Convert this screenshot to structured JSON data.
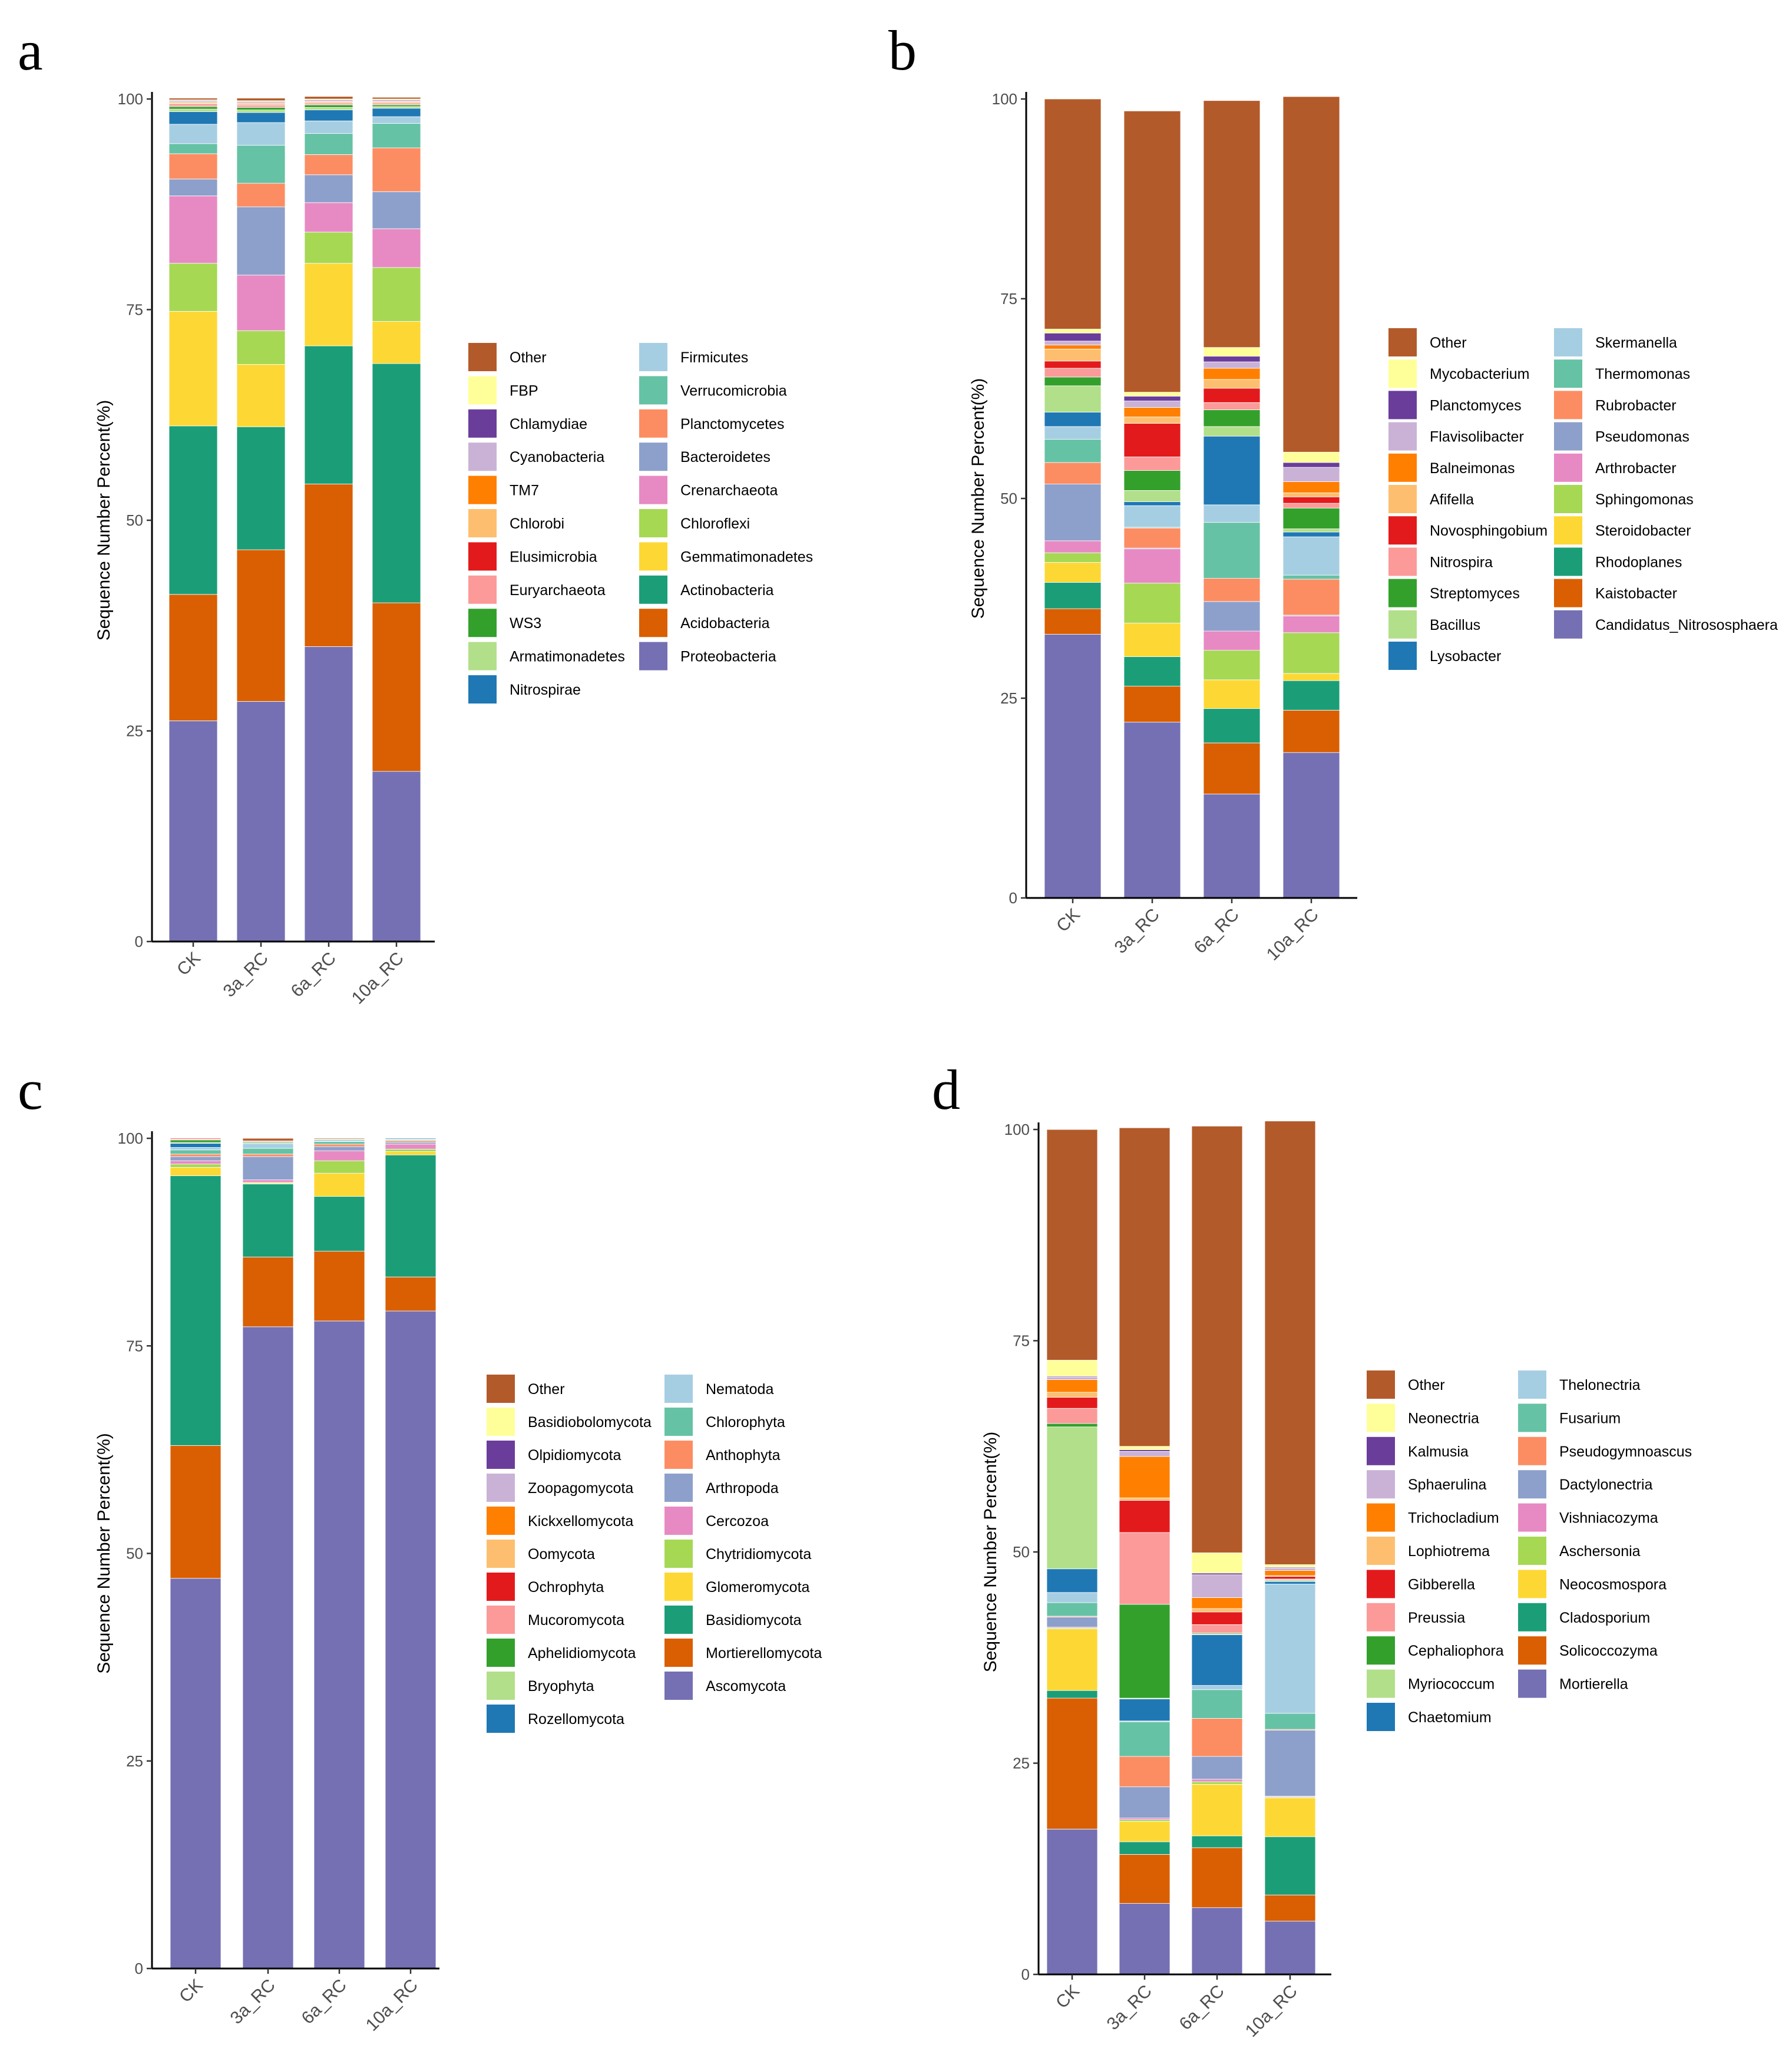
{
  "colors": {
    "other": "#B35A2A",
    "palette": [
      "#7570B3",
      "#D95F02",
      "#1B9E77",
      "#FDD835",
      "#A6D854",
      "#E78AC3",
      "#8DA0CB",
      "#FC8D62",
      "#66C2A5",
      "#A6CEE3",
      "#1F78B4",
      "#B2DF8A",
      "#33A02C",
      "#FB9A99",
      "#E31A1C",
      "#FDBF6F",
      "#FF7F00",
      "#CAB2D6",
      "#6A3D9A",
      "#FFFF99"
    ]
  },
  "chart_data": [
    {
      "panel": "a",
      "type": "bar",
      "stacked": true,
      "ylabel": "Sequence Number Percent(%)",
      "ylim": [
        0,
        100
      ],
      "yticks": [
        0,
        25,
        50,
        75,
        100
      ],
      "categories": [
        "CK",
        "3a_RC",
        "6a_RC",
        "10a_RC"
      ],
      "series": [
        {
          "name": "Proteobacteria",
          "values": [
            26.2,
            28.5,
            35.0,
            20.2
          ]
        },
        {
          "name": "Acidobacteria",
          "values": [
            15.0,
            18.0,
            19.3,
            20.0
          ]
        },
        {
          "name": "Actinobacteria",
          "values": [
            20.0,
            14.6,
            16.4,
            28.4
          ]
        },
        {
          "name": "Gemmatimonadetes",
          "values": [
            13.6,
            7.4,
            9.8,
            5.0
          ]
        },
        {
          "name": "Chloroflexi",
          "values": [
            5.7,
            4.0,
            3.7,
            6.4
          ]
        },
        {
          "name": "Crenarchaeota",
          "values": [
            8.0,
            6.6,
            3.5,
            4.6
          ]
        },
        {
          "name": "Bacteroidetes",
          "values": [
            2.0,
            8.1,
            3.3,
            4.4
          ]
        },
        {
          "name": "Planctomycetes",
          "values": [
            3.0,
            2.8,
            2.4,
            5.2
          ]
        },
        {
          "name": "Verrucomicrobia",
          "values": [
            1.2,
            4.5,
            2.5,
            2.9
          ]
        },
        {
          "name": "Firmicutes",
          "values": [
            2.3,
            2.7,
            1.5,
            0.8
          ]
        },
        {
          "name": "Nitrospirae",
          "values": [
            1.5,
            1.2,
            1.3,
            1.0
          ]
        },
        {
          "name": "Armatimonadetes",
          "values": [
            0.3,
            0.3,
            0.3,
            0.2
          ]
        },
        {
          "name": "WS3",
          "values": [
            0.3,
            0.3,
            0.3,
            0.2
          ]
        },
        {
          "name": "Euryarchaeota",
          "values": [
            0.2,
            0.2,
            0.1,
            0.1
          ]
        },
        {
          "name": "Elusimicrobia",
          "values": [
            0.1,
            0.1,
            0.1,
            0.1
          ]
        },
        {
          "name": "Chlorobi",
          "values": [
            0.1,
            0.1,
            0.1,
            0.1
          ]
        },
        {
          "name": "TM7",
          "values": [
            0.1,
            0.1,
            0.1,
            0.1
          ]
        },
        {
          "name": "Cyanobacteria",
          "values": [
            0.1,
            0.1,
            0.1,
            0.1
          ]
        },
        {
          "name": "Chlamydiae",
          "values": [
            0.1,
            0.1,
            0.1,
            0.1
          ]
        },
        {
          "name": "FBP",
          "values": [
            0.1,
            0.1,
            0.1,
            0.1
          ]
        },
        {
          "name": "Other",
          "values": [
            0.2,
            0.3,
            0.3,
            0.2
          ]
        }
      ]
    },
    {
      "panel": "b",
      "type": "bar",
      "stacked": true,
      "ylabel": "Sequence Number Percent(%)",
      "ylim": [
        0,
        100
      ],
      "yticks": [
        0,
        25,
        50,
        75,
        100
      ],
      "categories": [
        "CK",
        "3a_RC",
        "6a_RC",
        "10a_RC"
      ],
      "series": [
        {
          "name": "Candidatus_Nitrososphaera",
          "values": [
            33.0,
            22.0,
            13.0,
            18.2
          ]
        },
        {
          "name": "Kaistobacter",
          "values": [
            3.2,
            4.5,
            6.4,
            5.3
          ]
        },
        {
          "name": "Rhodoplanes",
          "values": [
            3.3,
            3.7,
            4.3,
            3.7
          ]
        },
        {
          "name": "Steroidobacter",
          "values": [
            2.5,
            4.2,
            3.6,
            0.9
          ]
        },
        {
          "name": "Sphingomonas",
          "values": [
            1.2,
            5.0,
            3.7,
            5.1
          ]
        },
        {
          "name": "Arthrobacter",
          "values": [
            1.5,
            4.3,
            2.4,
            2.1
          ]
        },
        {
          "name": "Pseudomonas",
          "values": [
            7.1,
            0.1,
            3.7,
            0.1
          ]
        },
        {
          "name": "Rubrobacter",
          "values": [
            2.7,
            2.5,
            2.9,
            4.5
          ]
        },
        {
          "name": "Thermomonas",
          "values": [
            2.9,
            0.1,
            7.0,
            0.5
          ]
        },
        {
          "name": "Skermanella",
          "values": [
            1.6,
            2.7,
            2.2,
            4.8
          ]
        },
        {
          "name": "Lysobacter",
          "values": [
            1.8,
            0.5,
            8.6,
            0.6
          ]
        },
        {
          "name": "Bacillus",
          "values": [
            3.3,
            1.4,
            1.2,
            0.4
          ]
        },
        {
          "name": "Streptomyces",
          "values": [
            1.1,
            2.5,
            2.1,
            2.6
          ]
        },
        {
          "name": "Nitrospira",
          "values": [
            1.1,
            1.7,
            0.9,
            0.6
          ]
        },
        {
          "name": "Novosphingobium",
          "values": [
            0.9,
            4.2,
            1.8,
            0.8
          ]
        },
        {
          "name": "Afifella",
          "values": [
            1.5,
            0.8,
            1.1,
            0.5
          ]
        },
        {
          "name": "Balneimonas",
          "values": [
            0.5,
            1.2,
            1.4,
            1.4
          ]
        },
        {
          "name": "Flavisolibacter",
          "values": [
            0.5,
            0.8,
            0.8,
            1.8
          ]
        },
        {
          "name": "Planctomyces",
          "values": [
            1.0,
            0.6,
            0.7,
            0.6
          ]
        },
        {
          "name": "Mycobacterium",
          "values": [
            0.5,
            0.5,
            1.1,
            1.3
          ]
        },
        {
          "name": "Other",
          "values": [
            28.8,
            35.2,
            30.9,
            44.5
          ]
        }
      ]
    },
    {
      "panel": "c",
      "type": "bar",
      "stacked": true,
      "ylabel": "Sequence Number Percent(%)",
      "ylim": [
        0,
        100
      ],
      "yticks": [
        0,
        25,
        50,
        75,
        100
      ],
      "categories": [
        "CK",
        "3a_RC",
        "6a_RC",
        "10a_RC"
      ],
      "series": [
        {
          "name": "Ascomycota",
          "values": [
            47.0,
            77.3,
            78.0,
            79.2
          ]
        },
        {
          "name": "Mortierellomycota",
          "values": [
            16.0,
            8.4,
            8.4,
            4.1
          ]
        },
        {
          "name": "Basidiomycota",
          "values": [
            32.5,
            8.8,
            6.6,
            14.7
          ]
        },
        {
          "name": "Glomeromycota",
          "values": [
            1.0,
            0.1,
            2.8,
            0.4
          ]
        },
        {
          "name": "Chytridiomycota",
          "values": [
            0.4,
            0.1,
            1.5,
            0.3
          ]
        },
        {
          "name": "Cercozoa",
          "values": [
            0.4,
            0.3,
            1.2,
            0.6
          ]
        },
        {
          "name": "Arthropoda",
          "values": [
            0.5,
            2.8,
            0.5,
            0.2
          ]
        },
        {
          "name": "Anthophyta",
          "values": [
            0.3,
            0.3,
            0.3,
            0.2
          ]
        },
        {
          "name": "Chlorophyta",
          "values": [
            0.5,
            0.7,
            0.3,
            0.1
          ]
        },
        {
          "name": "Nematoda",
          "values": [
            0.3,
            0.5,
            0.1,
            0.1
          ]
        },
        {
          "name": "Rozellomycota",
          "values": [
            0.5,
            0.1,
            0.1,
            0.1
          ]
        },
        {
          "name": "Bryophyta",
          "values": [
            0.1,
            0.1,
            0.1,
            0.0
          ]
        },
        {
          "name": "Aphelidiomycota",
          "values": [
            0.3,
            0.1,
            0.0,
            0.0
          ]
        },
        {
          "name": "Mucoromycota",
          "values": [
            0.1,
            0.1,
            0.0,
            0.0
          ]
        },
        {
          "name": "Ochrophyta",
          "values": [
            0.1,
            0.0,
            0.0,
            0.0
          ]
        },
        {
          "name": "Oomycota",
          "values": [
            0.0,
            0.0,
            0.0,
            0.0
          ]
        },
        {
          "name": "Kickxellomycota",
          "values": [
            0.0,
            0.0,
            0.0,
            0.0
          ]
        },
        {
          "name": "Zoopagomycota",
          "values": [
            0.0,
            0.0,
            0.0,
            0.0
          ]
        },
        {
          "name": "Olpidiomycota",
          "values": [
            0.0,
            0.0,
            0.0,
            0.0
          ]
        },
        {
          "name": "Basidiobolomycota",
          "values": [
            0.0,
            0.0,
            0.0,
            0.0
          ]
        },
        {
          "name": "Other",
          "values": [
            0.0,
            0.3,
            0.1,
            0.0
          ]
        }
      ]
    },
    {
      "panel": "d",
      "type": "bar",
      "stacked": true,
      "ylabel": "Sequence Number Percent(%)",
      "ylim": [
        0,
        100
      ],
      "yticks": [
        0,
        25,
        50,
        75,
        100
      ],
      "categories": [
        "CK",
        "3a_RC",
        "6a_RC",
        "10a_RC"
      ],
      "series": [
        {
          "name": "Mortierella",
          "values": [
            17.2,
            8.4,
            7.9,
            6.3
          ]
        },
        {
          "name": "Solicoccozyma",
          "values": [
            15.5,
            5.8,
            7.1,
            3.1
          ]
        },
        {
          "name": "Cladosporium",
          "values": [
            0.9,
            1.5,
            1.4,
            6.9
          ]
        },
        {
          "name": "Neocosmospora",
          "values": [
            7.3,
            2.4,
            6.1,
            4.6
          ]
        },
        {
          "name": "Aschersonia",
          "values": [
            0.1,
            0.2,
            0.3,
            0.1
          ]
        },
        {
          "name": "Vishniacozyma",
          "values": [
            0.1,
            0.2,
            0.3,
            0.1
          ]
        },
        {
          "name": "Dactylonectria",
          "values": [
            1.2,
            3.7,
            2.7,
            7.8
          ]
        },
        {
          "name": "Pseudogymnoascus",
          "values": [
            0.1,
            3.6,
            4.5,
            0.1
          ]
        },
        {
          "name": "Fusarium",
          "values": [
            1.6,
            4.1,
            3.4,
            1.9
          ]
        },
        {
          "name": "Thelonectria",
          "values": [
            1.2,
            0.1,
            0.5,
            15.3
          ]
        },
        {
          "name": "Chaetomium",
          "values": [
            2.8,
            2.6,
            6.0,
            0.3
          ]
        },
        {
          "name": "Myriococcum",
          "values": [
            16.8,
            0.1,
            0.1,
            0.1
          ]
        },
        {
          "name": "Cephaliophora",
          "values": [
            0.4,
            11.1,
            0.1,
            0.1
          ]
        },
        {
          "name": "Preussia",
          "values": [
            1.8,
            8.5,
            1.0,
            0.1
          ]
        },
        {
          "name": "Gibberella",
          "values": [
            1.3,
            3.8,
            1.5,
            0.3
          ]
        },
        {
          "name": "Lophiotrema",
          "values": [
            0.6,
            0.3,
            0.4,
            0.1
          ]
        },
        {
          "name": "Trichocladium",
          "values": [
            1.5,
            4.9,
            1.3,
            0.6
          ]
        },
        {
          "name": "Sphaerulina",
          "values": [
            0.3,
            0.6,
            2.7,
            0.3
          ]
        },
        {
          "name": "Kalmusia",
          "values": [
            0.1,
            0.2,
            0.2,
            0.1
          ]
        },
        {
          "name": "Neonectria",
          "values": [
            1.9,
            0.4,
            2.4,
            0.3
          ]
        },
        {
          "name": "Other",
          "values": [
            27.3,
            37.7,
            50.5,
            52.5
          ]
        }
      ]
    }
  ],
  "legends": [
    {
      "col1": [
        "Other",
        "FBP",
        "Chlamydiae",
        "Cyanobacteria",
        "TM7",
        "Chlorobi",
        "Elusimicrobia",
        "Euryarchaeota",
        "WS3",
        "Armatimonadetes",
        "Nitrospirae"
      ],
      "col2": [
        "Firmicutes",
        "Verrucomicrobia",
        "Planctomycetes",
        "Bacteroidetes",
        "Crenarchaeota",
        "Chloroflexi",
        "Gemmatimonadetes",
        "Actinobacteria",
        "Acidobacteria",
        "Proteobacteria"
      ]
    },
    {
      "col1": [
        "Other",
        "Mycobacterium",
        "Planctomyces",
        "Flavisolibacter",
        "Balneimonas",
        "Afifella",
        "Novosphingobium",
        "Nitrospira",
        "Streptomyces",
        "Bacillus",
        "Lysobacter"
      ],
      "col2": [
        "Skermanella",
        "Thermomonas",
        "Rubrobacter",
        "Pseudomonas",
        "Arthrobacter",
        "Sphingomonas",
        "Steroidobacter",
        "Rhodoplanes",
        "Kaistobacter",
        "Candidatus_Nitrososphaera"
      ]
    },
    {
      "col1": [
        "Other",
        "Basidiobolomycota",
        "Olpidiomycota",
        "Zoopagomycota",
        "Kickxellomycota",
        "Oomycota",
        "Ochrophyta",
        "Mucoromycota",
        "Aphelidiomycota",
        "Bryophyta",
        "Rozellomycota"
      ],
      "col2": [
        "Nematoda",
        "Chlorophyta",
        "Anthophyta",
        "Arthropoda",
        "Cercozoa",
        "Chytridiomycota",
        "Glomeromycota",
        "Basidiomycota",
        "Mortierellomycota",
        "Ascomycota"
      ]
    },
    {
      "col1": [
        "Other",
        "Neonectria",
        "Kalmusia",
        "Sphaerulina",
        "Trichocladium",
        "Lophiotrema",
        "Gibberella",
        "Preussia",
        "Cephaliophora",
        "Myriococcum",
        "Chaetomium"
      ],
      "col2": [
        "Thelonectria",
        "Fusarium",
        "Pseudogymnoascus",
        "Dactylonectria",
        "Vishniacozyma",
        "Aschersonia",
        "Neocosmospora",
        "Cladosporium",
        "Solicoccozyma",
        "Mortierella"
      ]
    }
  ]
}
